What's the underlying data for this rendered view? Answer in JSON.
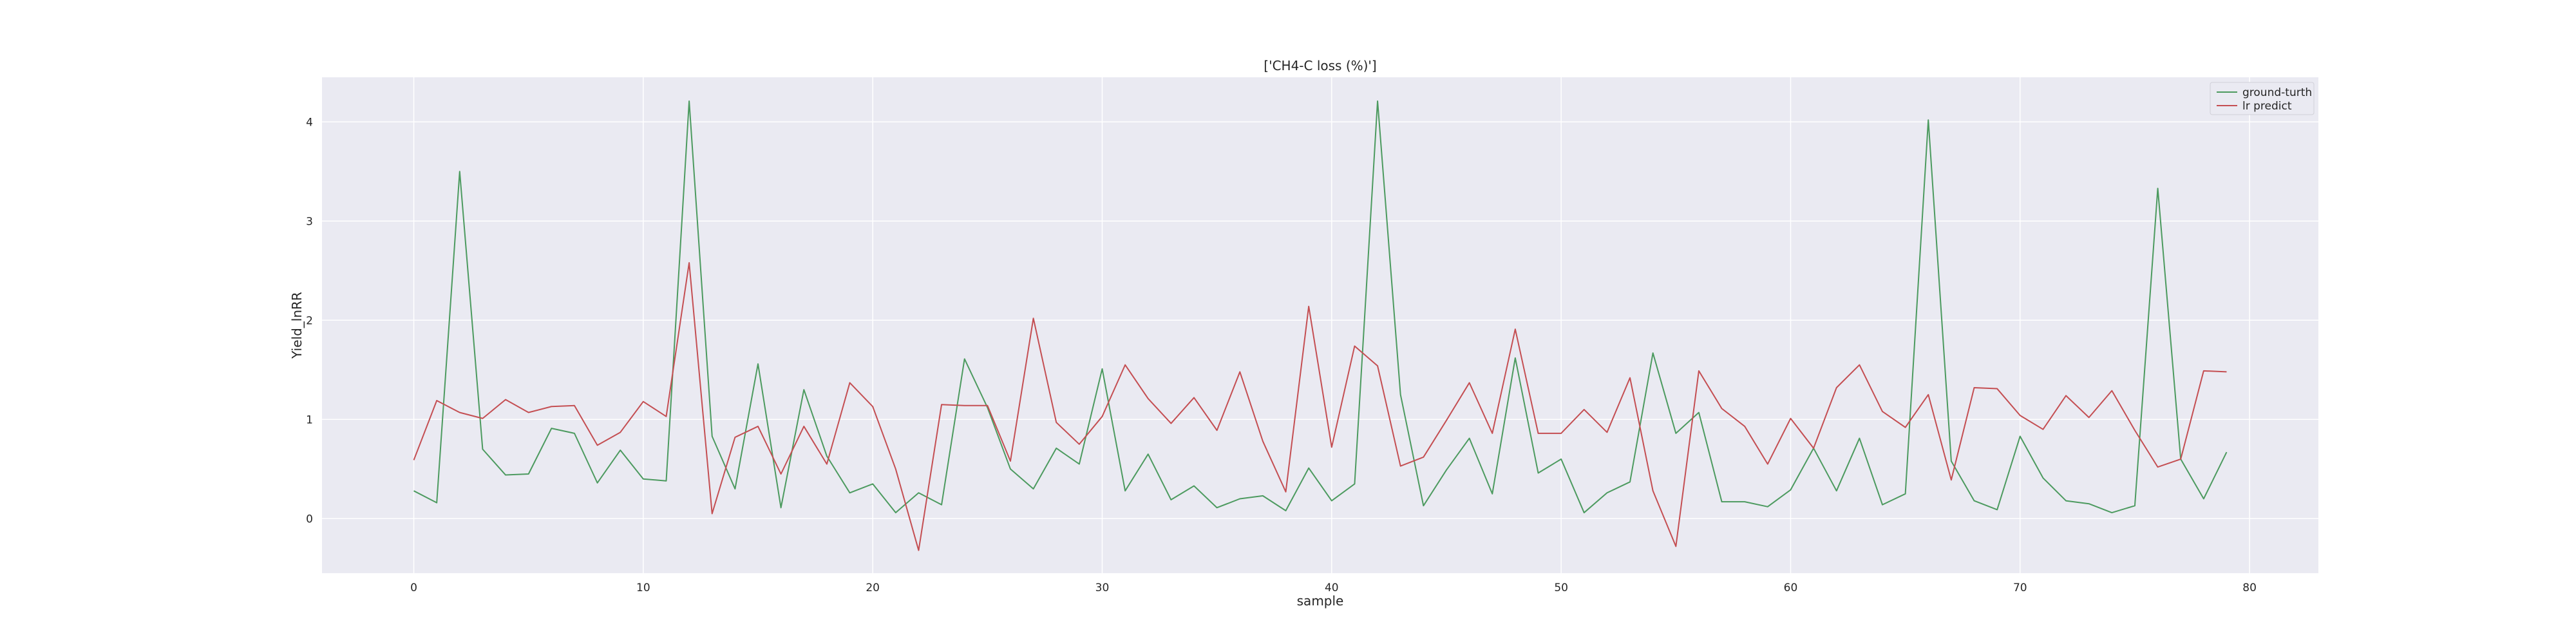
{
  "chart_data": {
    "type": "line",
    "title": "['CH4-C loss (%)']",
    "xlabel": "sample",
    "ylabel": "Yield_lnRR",
    "xlim": [
      -4,
      83
    ],
    "ylim": [
      -0.55,
      4.45
    ],
    "xticks": [
      0,
      10,
      20,
      30,
      40,
      50,
      60,
      70,
      80
    ],
    "yticks": [
      0,
      1,
      2,
      3,
      4
    ],
    "grid": true,
    "legend_position": "top-right",
    "series": [
      {
        "name": "ground-turth",
        "color": "#4c9a5f",
        "x": [
          0,
          1,
          2,
          3,
          4,
          5,
          6,
          7,
          8,
          9,
          10,
          11,
          12,
          13,
          14,
          15,
          16,
          17,
          18,
          19,
          20,
          21,
          22,
          23,
          24,
          25,
          26,
          27,
          28,
          29,
          30,
          31,
          32,
          33,
          34,
          35,
          36,
          37,
          38,
          39,
          40,
          41,
          42,
          43,
          44,
          45,
          46,
          47,
          48,
          49,
          50,
          51,
          52,
          53,
          54,
          55,
          56,
          57,
          58,
          59,
          60,
          61,
          62,
          63,
          64,
          65,
          66,
          67,
          68,
          69,
          70,
          71,
          72,
          73,
          74,
          75,
          76,
          77,
          78,
          79
        ],
        "y": [
          0.28,
          0.16,
          3.5,
          0.7,
          0.44,
          0.45,
          0.91,
          0.86,
          0.36,
          0.69,
          0.4,
          0.38,
          4.21,
          0.83,
          0.3,
          1.56,
          0.11,
          1.3,
          0.63,
          0.26,
          0.35,
          0.06,
          0.26,
          0.14,
          1.61,
          1.12,
          0.5,
          0.3,
          0.71,
          0.55,
          1.51,
          0.28,
          0.65,
          0.19,
          0.33,
          0.11,
          0.2,
          0.23,
          0.08,
          0.51,
          0.18,
          0.35,
          4.21,
          1.25,
          0.13,
          0.49,
          0.81,
          0.25,
          1.62,
          0.46,
          0.6,
          0.06,
          0.26,
          0.37,
          1.67,
          0.86,
          1.07,
          0.17,
          0.17,
          0.12,
          0.29,
          0.71,
          0.28,
          0.81,
          0.14,
          0.25,
          4.02,
          0.58,
          0.18,
          0.09,
          0.83,
          0.41,
          0.18,
          0.15,
          0.06,
          0.13,
          3.33,
          0.6,
          0.2,
          0.67
        ]
      },
      {
        "name": "lr predict",
        "color": "#c44e52",
        "x": [
          0,
          1,
          2,
          3,
          4,
          5,
          6,
          7,
          8,
          9,
          10,
          11,
          12,
          13,
          14,
          15,
          16,
          17,
          18,
          19,
          20,
          21,
          22,
          23,
          24,
          25,
          26,
          27,
          28,
          29,
          30,
          31,
          32,
          33,
          34,
          35,
          36,
          37,
          38,
          39,
          40,
          41,
          42,
          43,
          44,
          45,
          46,
          47,
          48,
          49,
          50,
          51,
          52,
          53,
          54,
          55,
          56,
          57,
          58,
          59,
          60,
          61,
          62,
          63,
          64,
          65,
          66,
          67,
          68,
          69,
          70,
          71,
          72,
          73,
          74,
          75,
          76,
          77,
          78,
          79
        ],
        "y": [
          0.59,
          1.19,
          1.07,
          1.01,
          1.2,
          1.07,
          1.13,
          1.14,
          0.74,
          0.87,
          1.18,
          1.03,
          2.58,
          0.05,
          0.82,
          0.93,
          0.45,
          0.93,
          0.55,
          1.37,
          1.13,
          0.5,
          -0.32,
          1.15,
          1.14,
          1.14,
          0.58,
          2.02,
          0.97,
          0.75,
          1.03,
          1.55,
          1.21,
          0.96,
          1.22,
          0.89,
          1.48,
          0.78,
          0.27,
          2.14,
          0.72,
          1.74,
          1.54,
          0.53,
          0.62,
          0.99,
          1.37,
          0.86,
          1.91,
          0.86,
          0.86,
          1.1,
          0.87,
          1.42,
          0.28,
          -0.28,
          1.49,
          1.11,
          0.93,
          0.55,
          1.01,
          0.71,
          1.32,
          1.55,
          1.08,
          0.92,
          1.25,
          0.39,
          1.32,
          1.31,
          1.04,
          0.9,
          1.24,
          1.02,
          1.29,
          0.89,
          0.52,
          0.6,
          1.49,
          1.48
        ]
      }
    ]
  }
}
